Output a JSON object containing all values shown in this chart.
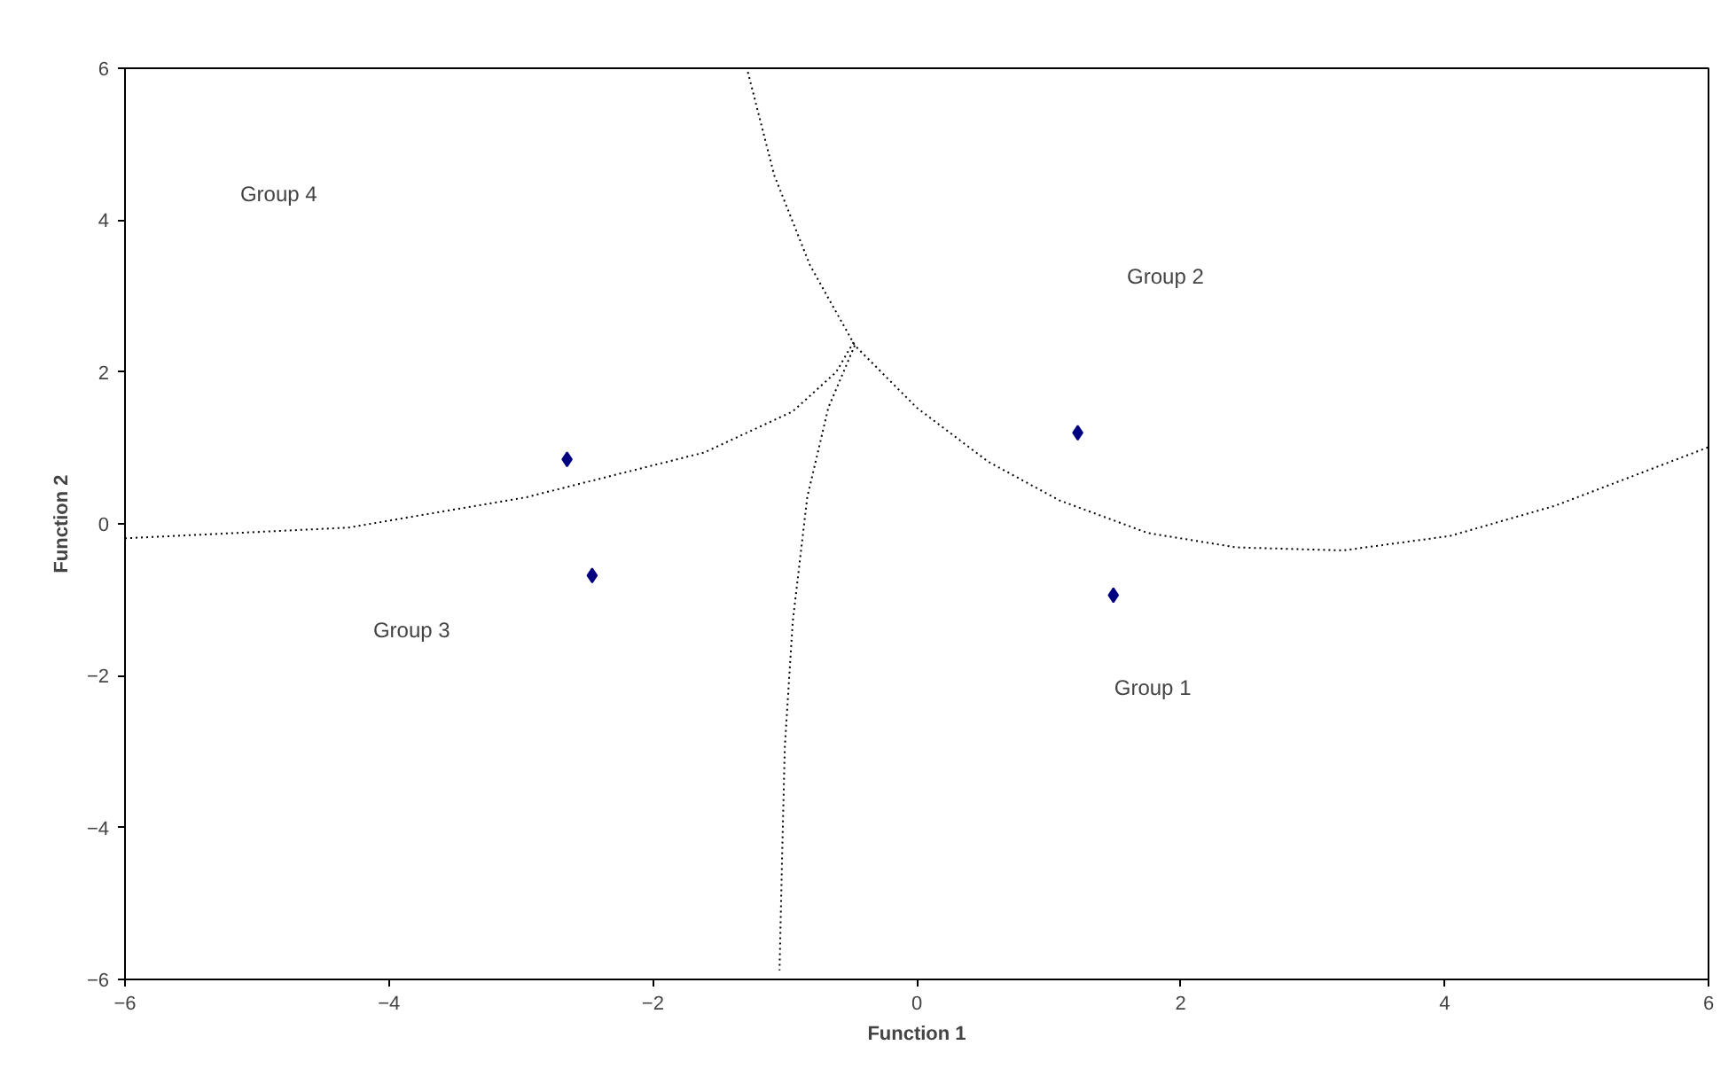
{
  "chart_data": {
    "type": "scatter",
    "xlabel": "Function 1",
    "ylabel": "Function 2",
    "xlim": [
      -6,
      6
    ],
    "ylim": [
      -6,
      6
    ],
    "xticks": [
      -6,
      -4,
      -2,
      0,
      2,
      4,
      6
    ],
    "yticks": [
      -6,
      -4,
      -2,
      0,
      2,
      4,
      6
    ],
    "grid": false,
    "marker": "diamond",
    "series": [
      {
        "color": "#000080",
        "x": [
          -2.65,
          -2.46,
          1.22,
          1.49
        ],
        "values": [
          0.85,
          -0.68,
          1.2,
          -0.94
        ]
      },
      {
        "type": "line",
        "color": "#000000",
        "line_style": "dotted",
        "marker": "none",
        "x": [
          -1.28,
          -1.08,
          -0.81,
          -0.47,
          0,
          0.54,
          1.08,
          1.75,
          2.42,
          3.23,
          4.04,
          4.84,
          6
        ],
        "values": [
          5.95,
          4.59,
          3.41,
          2.35,
          1.53,
          0.82,
          0.31,
          -0.12,
          -0.31,
          -0.35,
          -0.16,
          0.24,
          1.01
        ]
      },
      {
        "type": "line",
        "color": "#000000",
        "line_style": "dotted",
        "marker": "none",
        "x": [
          -6,
          -4.31,
          -2.96,
          -1.61,
          -0.94,
          -0.61,
          -0.47
        ],
        "values": [
          -0.19,
          -0.05,
          0.35,
          0.94,
          1.48,
          2.0,
          2.42
        ]
      },
      {
        "type": "line",
        "color": "#000000",
        "line_style": "dotted",
        "marker": "none",
        "x": [
          -0.47,
          -0.67,
          -0.83,
          -0.94,
          -1.0,
          -1.02,
          -1.04
        ],
        "values": [
          2.35,
          1.53,
          0.35,
          -1.29,
          -2.94,
          -4.35,
          -5.88
        ]
      }
    ],
    "annotations": [
      "Group 4",
      "Group 2",
      "Group 3",
      "Group 1"
    ]
  }
}
